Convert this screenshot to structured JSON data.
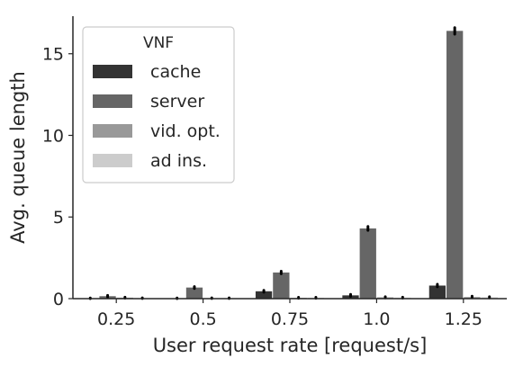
{
  "chart_data": {
    "type": "bar",
    "categories": [
      "0.25",
      "0.5",
      "0.75",
      "1.0",
      "1.25"
    ],
    "series": [
      {
        "name": "cache",
        "color": "#333333",
        "values": [
          0.02,
          0.02,
          0.45,
          0.2,
          0.8
        ],
        "errors": [
          0.02,
          0.02,
          0.06,
          0.06,
          0.08
        ]
      },
      {
        "name": "server",
        "color": "#666666",
        "values": [
          0.15,
          0.68,
          1.6,
          4.3,
          16.4
        ],
        "errors": [
          0.05,
          0.06,
          0.08,
          0.12,
          0.2
        ]
      },
      {
        "name": "vid. opt.",
        "color": "#999999",
        "values": [
          0.06,
          0.03,
          0.05,
          0.08,
          0.1
        ],
        "errors": [
          0.03,
          0.02,
          0.03,
          0.04,
          0.05
        ]
      },
      {
        "name": "ad ins.",
        "color": "#cccccc",
        "values": [
          0.03,
          0.03,
          0.05,
          0.06,
          0.08
        ],
        "errors": [
          0.02,
          0.02,
          0.03,
          0.03,
          0.04
        ]
      }
    ],
    "xlabel": "User request rate [request/s]",
    "ylabel": "Avg. queue length",
    "ylim": [
      0,
      17.3
    ],
    "yticks": [
      0,
      5,
      10,
      15
    ],
    "legend": {
      "title": "VNF",
      "position": "top-left"
    },
    "grid": false
  }
}
